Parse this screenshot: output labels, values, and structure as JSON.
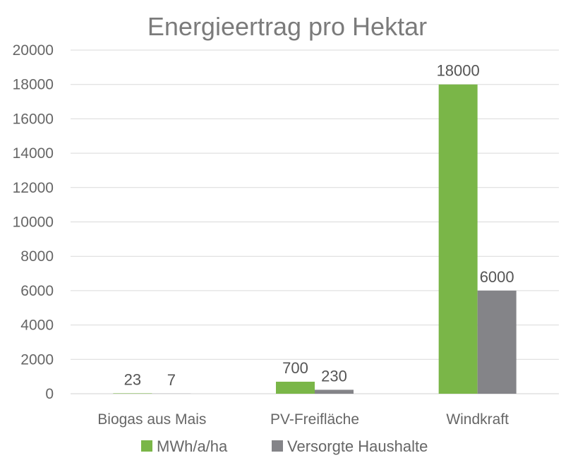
{
  "chart_data": {
    "type": "bar",
    "title": "Energieertrag pro Hektar",
    "categories": [
      "Biogas aus Mais",
      "PV-Freifläche",
      "Windkraft"
    ],
    "series": [
      {
        "name": "MWh/a/ha",
        "values": [
          23,
          700,
          18000
        ],
        "color": "#7ab648"
      },
      {
        "name": "Versorgte Haushalte",
        "values": [
          7,
          230,
          6000
        ],
        "color": "#848488"
      }
    ],
    "ylim": [
      0,
      20000
    ],
    "yticks": [
      0,
      2000,
      4000,
      6000,
      8000,
      10000,
      12000,
      14000,
      16000,
      18000,
      20000
    ],
    "xlabel": "",
    "ylabel": "",
    "grid": true,
    "legend": "bottom"
  }
}
